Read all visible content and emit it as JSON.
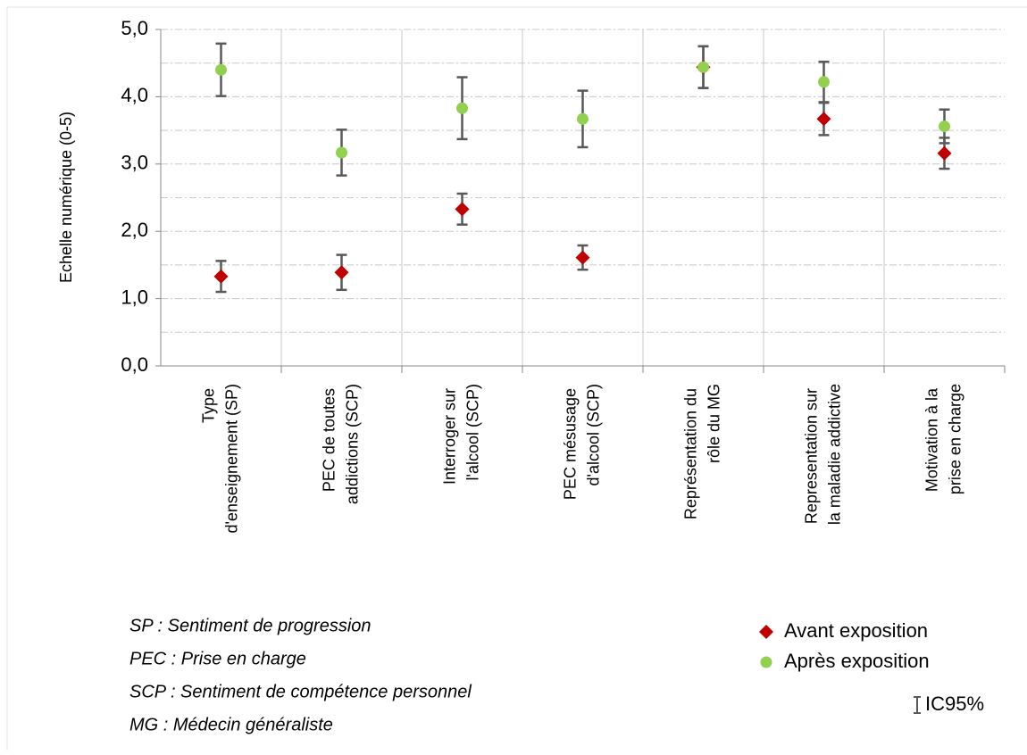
{
  "chart_data": {
    "type": "scatter",
    "y_label": "Echelle numérique (0-5)",
    "categories": [
      "Type\nd'enseignement (SP)",
      "PEC de toutes\naddictions (SCP)",
      "Interroger sur\nl'alcool (SCP)",
      "PEC mésusage\nd'alcool (SCP)",
      "Représentation du\nrôle du MG",
      "Representation sur\nla maladie addictive",
      "Motivation à la\nprise en charge"
    ],
    "series": [
      {
        "name": "Avant exposition",
        "color": "#c00000",
        "marker": "diamond",
        "values": [
          1.33,
          1.39,
          2.33,
          1.61,
          4.44,
          3.67,
          3.16
        ],
        "errors": [
          0.23,
          0.26,
          0.23,
          0.18,
          0.31,
          0.24,
          0.23
        ]
      },
      {
        "name": "Après exposition",
        "color": "#92d050",
        "marker": "circle",
        "values": [
          4.4,
          3.17,
          3.83,
          3.67,
          4.44,
          4.22,
          3.56
        ],
        "errors": [
          0.39,
          0.34,
          0.46,
          0.42,
          0.31,
          0.3,
          0.25
        ]
      }
    ],
    "error_label": "IC95%",
    "error_color": "#595959",
    "ylim": [
      0,
      5
    ],
    "yticks": [
      {
        "value": 0,
        "label": "0,0"
      },
      {
        "value": 1,
        "label": "1,0"
      },
      {
        "value": 2,
        "label": "2,0"
      },
      {
        "value": 3,
        "label": "3,0"
      },
      {
        "value": 4,
        "label": "4,0"
      },
      {
        "value": 5,
        "label": "5,0"
      }
    ],
    "minor_yticks": [
      0.5,
      1.5,
      2.5,
      3.5,
      4.5
    ],
    "grid": true,
    "legend": "bottom-right",
    "notes": [
      "SP : Sentiment de progression",
      "PEC : Prise en charge",
      "SCP : Sentiment de compétence personnel",
      "MG : Médecin généraliste"
    ]
  }
}
